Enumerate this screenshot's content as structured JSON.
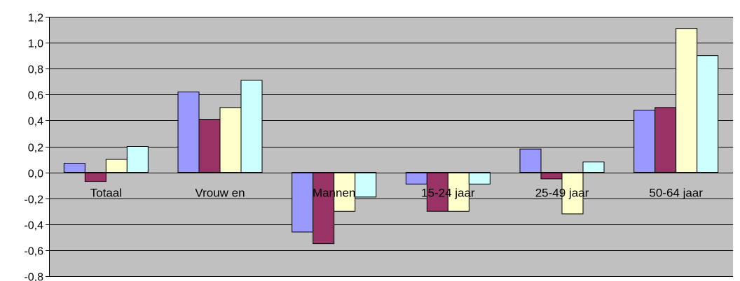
{
  "chart_data": {
    "type": "bar",
    "categories": [
      "Totaal",
      "Vrouw en",
      "Mannen",
      "15-24 jaar",
      "25-49 jaar",
      "50-64 jaar"
    ],
    "series": [
      {
        "values": [
          0.07,
          0.62,
          -0.46,
          -0.09,
          0.18,
          0.48
        ],
        "color": "#9999FF"
      },
      {
        "values": [
          -0.07,
          0.41,
          -0.55,
          -0.3,
          -0.05,
          0.5
        ],
        "color": "#993366"
      },
      {
        "values": [
          0.1,
          0.5,
          -0.3,
          -0.3,
          -0.32,
          1.11
        ],
        "color": "#FFFFCC"
      },
      {
        "values": [
          0.2,
          0.71,
          -0.19,
          -0.09,
          0.08,
          0.9
        ],
        "color": "#CCFFFF"
      }
    ],
    "title": "",
    "xlabel": "",
    "ylabel": "",
    "ylim": [
      -0.8,
      1.2
    ],
    "yticks": [
      1.2,
      1.0,
      0.8,
      0.6,
      0.4,
      0.2,
      0.0,
      -0.2,
      -0.4,
      -0.6,
      -0.8
    ],
    "ytick_labels": [
      "1,2",
      "1,0",
      "0,8",
      "0,6",
      "0,4",
      "0,2",
      "0,0",
      "-0,2",
      "-0,4",
      "-0,6",
      "-0,8"
    ],
    "grid": true,
    "legend": "none",
    "plot_background": "#C0C0C0"
  }
}
